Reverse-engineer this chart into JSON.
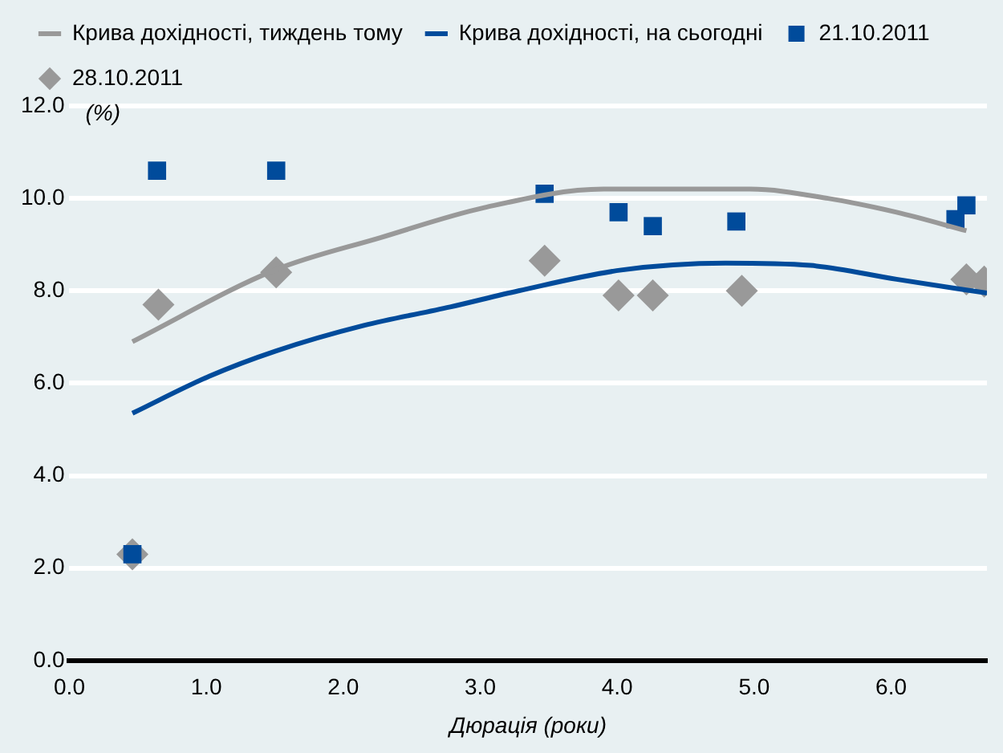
{
  "chart_data": {
    "type": "scatter",
    "xlabel": "Дюрація (роки)",
    "ylabel": "(%)",
    "xlim": [
      0,
      6.7
    ],
    "xticks": [
      {
        "value": 0,
        "label": "0.0"
      },
      {
        "value": 1,
        "label": "1.0"
      },
      {
        "value": 2,
        "label": "2.0"
      },
      {
        "value": 3,
        "label": "3.0"
      },
      {
        "value": 4,
        "label": "4.0"
      },
      {
        "value": 5,
        "label": "5.0"
      },
      {
        "value": 6,
        "label": "6.0"
      }
    ],
    "ylim": [
      0,
      12
    ],
    "yticks": [
      {
        "value": 0,
        "label": "0.0"
      },
      {
        "value": 2,
        "label": "2.0"
      },
      {
        "value": 4,
        "label": "4.0"
      },
      {
        "value": 6,
        "label": "6.0"
      },
      {
        "value": 8,
        "label": "8.0"
      },
      {
        "value": 10,
        "label": "10.0"
      },
      {
        "value": 12,
        "label": "12.0"
      }
    ],
    "grid": "y",
    "legend": "top",
    "series": [
      {
        "type": "scatter",
        "name": "21.10.2011",
        "color": "#004b9b",
        "marker": "square",
        "x": [
          0.46,
          0.64,
          1.51,
          3.47,
          4.01,
          4.26,
          4.87,
          6.47,
          6.55
        ],
        "values": [
          2.3,
          10.6,
          10.6,
          10.1,
          9.7,
          9.4,
          9.5,
          9.55,
          9.85
        ]
      },
      {
        "type": "scatter",
        "name": "28.10.2011",
        "color": "#999999",
        "marker": "diamond",
        "x": [
          0.46,
          0.65,
          1.51,
          3.47,
          4.01,
          4.26,
          4.91,
          6.55,
          6.68
        ],
        "values": [
          2.3,
          7.7,
          8.4,
          8.65,
          7.9,
          7.9,
          8.0,
          8.25,
          8.2
        ]
      },
      {
        "type": "line",
        "name": "Крива дохідності, тиждень тому",
        "color": "#999999",
        "marker": "none",
        "x": [
          0.46,
          1.5,
          2.27,
          3.03,
          3.9,
          4.97,
          5.54,
          6.04,
          6.55
        ],
        "values": [
          6.9,
          8.45,
          9.15,
          9.8,
          10.2,
          10.2,
          10.0,
          9.7,
          9.3
        ]
      },
      {
        "type": "line",
        "name": "Крива дохідності, на сьогодні",
        "color": "#004b9b",
        "marker": "none",
        "x": [
          0.46,
          1.02,
          1.51,
          2.15,
          2.78,
          3.28,
          4.03,
          4.79,
          5.41,
          6.04,
          6.7
        ],
        "values": [
          5.35,
          6.15,
          6.7,
          7.25,
          7.65,
          8.0,
          8.45,
          8.6,
          8.55,
          8.25,
          7.95
        ]
      }
    ]
  }
}
